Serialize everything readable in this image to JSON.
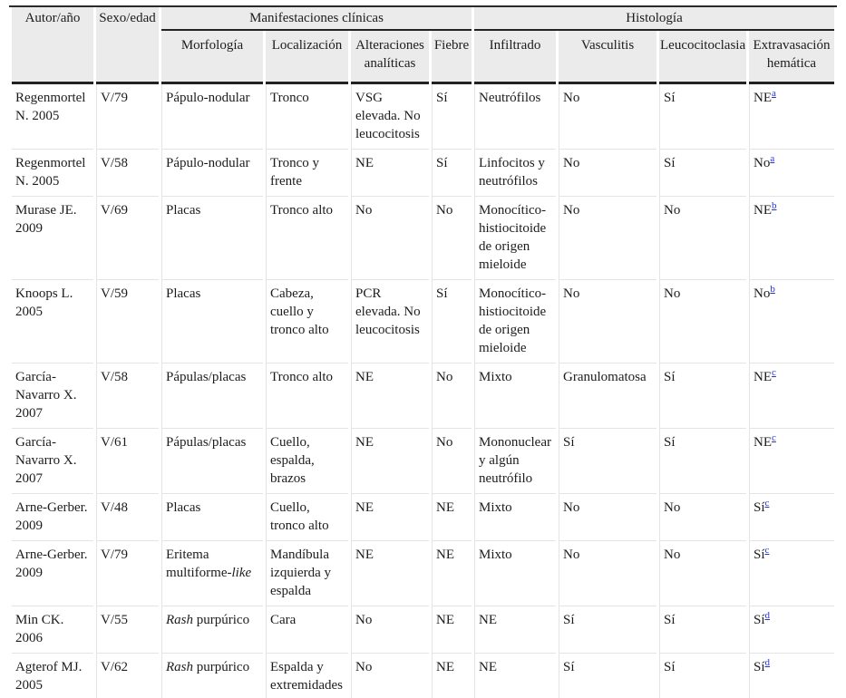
{
  "colors": {
    "header_background": "#ebebeb",
    "dark_rule": "#222222",
    "light_rule": "#e4e4e4",
    "footnote_link": "#2431d8",
    "text": "#1c1c1c"
  },
  "table": {
    "header": {
      "col_autor": "Autor/año",
      "col_sexo": "Sexo/edad",
      "group_clinicas": "Manifestaciones clínicas",
      "group_histologia": "Histología",
      "sub": [
        "Morfología",
        "Localización",
        "Alteraciones analíticas",
        "Fiebre",
        "Infiltrado",
        "Vasculitis",
        "Leucocitoclasia",
        "Extravasación hemática"
      ]
    },
    "rows": [
      {
        "autor": "Regenmortel N. 2005",
        "sexo": "V/79",
        "morfologia": [
          {
            "t": "Pápulo-nodular"
          }
        ],
        "localizacion": "Tronco",
        "alteraciones": "VSG elevada. No leucocitosis",
        "fiebre": "Sí",
        "infiltrado": "Neutrófilos",
        "vasculitis": "No",
        "leucocitoclasia": "Sí",
        "extravasacion": "NE",
        "footnote": "a"
      },
      {
        "autor": "Regenmortel N. 2005",
        "sexo": "V/58",
        "morfologia": [
          {
            "t": "Pápulo-nodular"
          }
        ],
        "localizacion": "Tronco y frente",
        "alteraciones": "NE",
        "fiebre": "Sí",
        "infiltrado": "Linfocitos y neutrófilos",
        "vasculitis": "No",
        "leucocitoclasia": "Sí",
        "extravasacion": "No",
        "footnote": "a"
      },
      {
        "autor": "Murase JE. 2009",
        "sexo": "V/69",
        "morfologia": [
          {
            "t": "Placas"
          }
        ],
        "localizacion": "Tronco alto",
        "alteraciones": "No",
        "fiebre": "No",
        "infiltrado": "Monocítico-histiocitoide de origen mieloide",
        "vasculitis": "No",
        "leucocitoclasia": "No",
        "extravasacion": "NE",
        "footnote": "b"
      },
      {
        "autor": "Knoops L. 2005",
        "sexo": "V/59",
        "morfologia": [
          {
            "t": "Placas"
          }
        ],
        "localizacion": "Cabeza, cuello y tronco alto",
        "alteraciones": "PCR elevada. No leucocitosis",
        "fiebre": "Sí",
        "infiltrado": "Monocítico-histiocitoide de origen mieloide",
        "vasculitis": "No",
        "leucocitoclasia": "No",
        "extravasacion": "No",
        "footnote": "b"
      },
      {
        "autor": "García-Navarro X. 2007",
        "sexo": "V/58",
        "morfologia": [
          {
            "t": "Pápulas/placas"
          }
        ],
        "localizacion": "Tronco alto",
        "alteraciones": "NE",
        "fiebre": "No",
        "infiltrado": "Mixto",
        "vasculitis": "Granulomatosa",
        "leucocitoclasia": "Sí",
        "extravasacion": "NE",
        "footnote": "c"
      },
      {
        "autor": "García-Navarro X. 2007",
        "sexo": "V/61",
        "morfologia": [
          {
            "t": "Pápulas/placas"
          }
        ],
        "localizacion": "Cuello, espalda, brazos",
        "alteraciones": "NE",
        "fiebre": "No",
        "infiltrado": "Mononuclear y algún neutrófilo",
        "vasculitis": "Sí",
        "leucocitoclasia": "Sí",
        "extravasacion": "NE",
        "footnote": "c"
      },
      {
        "autor": "Arne-Gerber. 2009",
        "sexo": "V/48",
        "morfologia": [
          {
            "t": "Placas"
          }
        ],
        "localizacion": "Cuello, tronco alto",
        "alteraciones": "NE",
        "fiebre": "NE",
        "infiltrado": "Mixto",
        "vasculitis": "No",
        "leucocitoclasia": "No",
        "extravasacion": "Sí",
        "footnote": "c"
      },
      {
        "autor": "Arne-Gerber. 2009",
        "sexo": "V/79",
        "morfologia": [
          {
            "t": "Eritema multiforme-"
          },
          {
            "t": "like",
            "i": true
          }
        ],
        "localizacion": "Mandíbula izquierda y espalda",
        "alteraciones": "NE",
        "fiebre": "NE",
        "infiltrado": "Mixto",
        "vasculitis": "No",
        "leucocitoclasia": "No",
        "extravasacion": "Sí",
        "footnote": "c"
      },
      {
        "autor": "Min CK. 2006",
        "sexo": "V/55",
        "morfologia": [
          {
            "t": "Rash",
            "i": true
          },
          {
            "t": " purpúrico"
          }
        ],
        "localizacion": "Cara",
        "alteraciones": "No",
        "fiebre": "NE",
        "infiltrado": "NE",
        "vasculitis": "Sí",
        "leucocitoclasia": "Sí",
        "extravasacion": "Sí",
        "footnote": "d"
      },
      {
        "autor": "Agterof MJ. 2005",
        "sexo": "V/62",
        "morfologia": [
          {
            "t": "Rash",
            "i": true
          },
          {
            "t": " purpúrico"
          }
        ],
        "localizacion": "Espalda y extremidades",
        "alteraciones": "No",
        "fiebre": "NE",
        "infiltrado": "NE",
        "vasculitis": "Sí",
        "leucocitoclasia": "Sí",
        "extravasacion": "Sí",
        "footnote": "d"
      }
    ]
  }
}
